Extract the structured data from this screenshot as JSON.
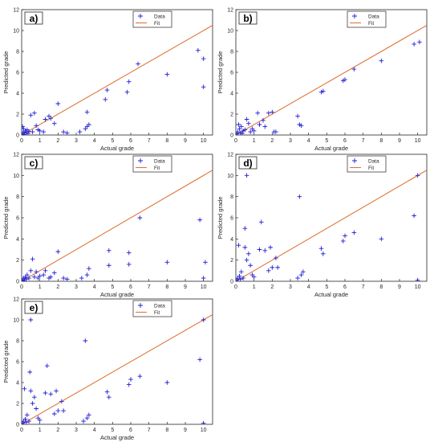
{
  "chart_data": [
    {
      "type": "scatter",
      "panel_label": "a)",
      "xlabel": "Actual grade",
      "ylabel": "Predicted grade",
      "xlim": [
        0,
        10.5
      ],
      "ylim": [
        0,
        12
      ],
      "xticks": [
        0,
        1,
        2,
        3,
        4,
        5,
        6,
        7,
        8,
        9,
        10
      ],
      "yticks": [
        0,
        2,
        4,
        6,
        8,
        10,
        12
      ],
      "legend_position": "top-center",
      "grid": false,
      "series": [
        {
          "name": "Data",
          "marker": "plus",
          "color": "#1f1fd6",
          "points": [
            [
              0.05,
              0.1
            ],
            [
              0.1,
              0.3
            ],
            [
              0.15,
              0.05
            ],
            [
              0.2,
              0.4
            ],
            [
              0.25,
              0.2
            ],
            [
              0.3,
              0.5
            ],
            [
              0.35,
              0.15
            ],
            [
              0.4,
              0.35
            ],
            [
              0.1,
              0.6
            ],
            [
              0.05,
              0.8
            ],
            [
              0.5,
              1.9
            ],
            [
              0.7,
              2.1
            ],
            [
              0.6,
              0.3
            ],
            [
              0.8,
              0.9
            ],
            [
              0.9,
              0.5
            ],
            [
              1.0,
              0.4
            ],
            [
              1.2,
              0.3
            ],
            [
              1.3,
              1.5
            ],
            [
              1.5,
              1.8
            ],
            [
              1.6,
              1.6
            ],
            [
              1.8,
              1.1
            ],
            [
              2.0,
              3.0
            ],
            [
              2.3,
              0.3
            ],
            [
              2.5,
              0.2
            ],
            [
              3.2,
              0.3
            ],
            [
              3.5,
              0.6
            ],
            [
              3.6,
              0.8
            ],
            [
              3.7,
              1.0
            ],
            [
              3.6,
              2.2
            ],
            [
              4.6,
              3.4
            ],
            [
              4.7,
              4.3
            ],
            [
              5.8,
              4.1
            ],
            [
              5.9,
              5.1
            ],
            [
              6.4,
              6.8
            ],
            [
              8.0,
              5.8
            ],
            [
              9.7,
              8.1
            ],
            [
              10.0,
              7.3
            ],
            [
              10.0,
              4.6
            ]
          ]
        },
        {
          "name": "Fit",
          "type": "line",
          "color": "#e0763a",
          "x": [
            0,
            10.5
          ],
          "y": [
            0,
            10.5
          ]
        }
      ]
    },
    {
      "type": "scatter",
      "panel_label": "b)",
      "xlabel": "Actual grade",
      "ylabel": "Predicted grade",
      "xlim": [
        0,
        10.5
      ],
      "ylim": [
        0,
        12
      ],
      "xticks": [
        0,
        1,
        2,
        3,
        4,
        5,
        6,
        7,
        8,
        9,
        10
      ],
      "yticks": [
        0,
        2,
        4,
        6,
        8,
        10,
        12
      ],
      "legend_position": "top-center",
      "grid": false,
      "series": [
        {
          "name": "Data",
          "marker": "plus",
          "color": "#1f1fd6",
          "points": [
            [
              0.05,
              0.1
            ],
            [
              0.1,
              0.3
            ],
            [
              0.15,
              1.0
            ],
            [
              0.2,
              0.6
            ],
            [
              0.25,
              0.2
            ],
            [
              0.3,
              0.8
            ],
            [
              0.35,
              0.15
            ],
            [
              0.4,
              0.4
            ],
            [
              0.5,
              0.5
            ],
            [
              0.6,
              1.5
            ],
            [
              0.7,
              1.1
            ],
            [
              0.8,
              0.3
            ],
            [
              0.9,
              0.6
            ],
            [
              1.0,
              0.4
            ],
            [
              1.2,
              2.1
            ],
            [
              1.3,
              1.0
            ],
            [
              1.5,
              1.4
            ],
            [
              1.6,
              0.8
            ],
            [
              1.8,
              2.1
            ],
            [
              2.0,
              2.2
            ],
            [
              2.1,
              0.3
            ],
            [
              2.2,
              0.3
            ],
            [
              3.4,
              1.8
            ],
            [
              3.5,
              1.0
            ],
            [
              3.6,
              0.9
            ],
            [
              4.7,
              4.1
            ],
            [
              4.8,
              4.2
            ],
            [
              5.9,
              5.2
            ],
            [
              6.0,
              5.3
            ],
            [
              6.5,
              6.3
            ],
            [
              8.0,
              7.1
            ],
            [
              9.8,
              8.7
            ],
            [
              10.1,
              8.9
            ]
          ]
        },
        {
          "name": "Fit",
          "type": "line",
          "color": "#e0763a",
          "x": [
            0,
            10.5
          ],
          "y": [
            0,
            10.5
          ]
        }
      ]
    },
    {
      "type": "scatter",
      "panel_label": "c)",
      "xlabel": "Actual grade",
      "ylabel": "Predicted grade",
      "xlim": [
        0,
        10.5
      ],
      "ylim": [
        0,
        12
      ],
      "xticks": [
        0,
        1,
        2,
        3,
        4,
        5,
        6,
        7,
        8,
        9,
        10
      ],
      "yticks": [
        0,
        2,
        4,
        6,
        8,
        10,
        12
      ],
      "legend_position": "top-center",
      "grid": false,
      "series": [
        {
          "name": "Data",
          "marker": "plus",
          "color": "#1f1fd6",
          "points": [
            [
              0.05,
              0.1
            ],
            [
              0.1,
              0.3
            ],
            [
              0.15,
              0.05
            ],
            [
              0.2,
              0.4
            ],
            [
              0.25,
              0.2
            ],
            [
              0.3,
              0.6
            ],
            [
              0.4,
              0.3
            ],
            [
              0.5,
              1.0
            ],
            [
              0.6,
              2.1
            ],
            [
              0.7,
              0.4
            ],
            [
              0.8,
              0.9
            ],
            [
              0.9,
              0.3
            ],
            [
              1.0,
              0.5
            ],
            [
              1.2,
              0.6
            ],
            [
              1.3,
              1.0
            ],
            [
              1.5,
              0.3
            ],
            [
              1.6,
              0.4
            ],
            [
              1.8,
              0.8
            ],
            [
              2.0,
              2.8
            ],
            [
              2.3,
              0.3
            ],
            [
              2.5,
              0.2
            ],
            [
              3.3,
              0.3
            ],
            [
              3.6,
              0.6
            ],
            [
              3.7,
              1.2
            ],
            [
              4.8,
              1.5
            ],
            [
              4.8,
              2.9
            ],
            [
              5.9,
              1.6
            ],
            [
              5.9,
              2.7
            ],
            [
              6.5,
              6.0
            ],
            [
              8.0,
              1.8
            ],
            [
              9.8,
              5.8
            ],
            [
              10.1,
              1.8
            ],
            [
              10.0,
              0.3
            ]
          ]
        },
        {
          "name": "Fit",
          "type": "line",
          "color": "#e0763a",
          "x": [
            0,
            10.5
          ],
          "y": [
            0,
            10.5
          ]
        }
      ]
    },
    {
      "type": "scatter",
      "panel_label": "d)",
      "xlabel": "Actual grade",
      "ylabel": "Predicted grade",
      "xlim": [
        0,
        10.5
      ],
      "ylim": [
        0,
        12
      ],
      "xticks": [
        0,
        1,
        2,
        3,
        4,
        5,
        6,
        7,
        8,
        9,
        10
      ],
      "yticks": [
        0,
        2,
        4,
        6,
        8,
        10,
        12
      ],
      "legend_position": "top-center",
      "grid": false,
      "series": [
        {
          "name": "Data",
          "marker": "plus",
          "color": "#1f1fd6",
          "points": [
            [
              0.05,
              0.1
            ],
            [
              0.1,
              0.3
            ],
            [
              0.15,
              3.4
            ],
            [
              0.2,
              0.5
            ],
            [
              0.25,
              0.2
            ],
            [
              0.3,
              0.9
            ],
            [
              0.4,
              0.3
            ],
            [
              0.5,
              5.0
            ],
            [
              0.6,
              10.0
            ],
            [
              0.5,
              3.2
            ],
            [
              0.6,
              2.0
            ],
            [
              0.7,
              2.6
            ],
            [
              0.8,
              1.5
            ],
            [
              0.9,
              0.6
            ],
            [
              1.0,
              0.4
            ],
            [
              1.3,
              3.0
            ],
            [
              1.4,
              5.6
            ],
            [
              1.6,
              2.9
            ],
            [
              1.8,
              1.0
            ],
            [
              1.9,
              3.2
            ],
            [
              2.0,
              1.3
            ],
            [
              2.2,
              2.2
            ],
            [
              2.3,
              1.3
            ],
            [
              3.4,
              0.3
            ],
            [
              3.5,
              8.0
            ],
            [
              3.6,
              0.6
            ],
            [
              3.7,
              0.9
            ],
            [
              4.7,
              3.1
            ],
            [
              4.8,
              2.6
            ],
            [
              5.9,
              3.8
            ],
            [
              6.0,
              4.3
            ],
            [
              6.5,
              4.6
            ],
            [
              8.0,
              4.0
            ],
            [
              9.8,
              6.2
            ],
            [
              10.0,
              10.0
            ],
            [
              10.0,
              0.1
            ]
          ]
        },
        {
          "name": "Fit",
          "type": "line",
          "color": "#e0763a",
          "x": [
            0,
            10.5
          ],
          "y": [
            0,
            10.5
          ]
        }
      ]
    },
    {
      "type": "scatter",
      "panel_label": "e)",
      "xlabel": "Actual grade",
      "ylabel": "Predicted grade",
      "xlim": [
        0,
        10.5
      ],
      "ylim": [
        0,
        12
      ],
      "xticks": [
        0,
        1,
        2,
        3,
        4,
        5,
        6,
        7,
        8,
        9,
        10
      ],
      "yticks": [
        0,
        2,
        4,
        6,
        8,
        10,
        12
      ],
      "legend_position": "top-center",
      "grid": false,
      "series": [
        {
          "name": "Data",
          "marker": "plus",
          "color": "#1f1fd6",
          "points": [
            [
              0.05,
              0.1
            ],
            [
              0.1,
              0.3
            ],
            [
              0.15,
              3.4
            ],
            [
              0.2,
              0.5
            ],
            [
              0.25,
              0.2
            ],
            [
              0.3,
              0.9
            ],
            [
              0.4,
              0.3
            ],
            [
              0.45,
              5.0
            ],
            [
              0.5,
              10.0
            ],
            [
              0.5,
              3.2
            ],
            [
              0.6,
              2.0
            ],
            [
              0.7,
              2.6
            ],
            [
              0.8,
              1.5
            ],
            [
              0.9,
              0.6
            ],
            [
              1.0,
              0.4
            ],
            [
              1.3,
              3.0
            ],
            [
              1.4,
              5.6
            ],
            [
              1.6,
              2.9
            ],
            [
              1.8,
              1.0
            ],
            [
              1.9,
              3.2
            ],
            [
              2.0,
              1.3
            ],
            [
              2.2,
              2.2
            ],
            [
              2.3,
              1.3
            ],
            [
              3.4,
              0.3
            ],
            [
              3.5,
              8.0
            ],
            [
              3.6,
              0.6
            ],
            [
              3.7,
              0.9
            ],
            [
              4.7,
              3.1
            ],
            [
              4.8,
              2.6
            ],
            [
              5.9,
              3.8
            ],
            [
              6.0,
              4.3
            ],
            [
              6.5,
              4.6
            ],
            [
              8.0,
              4.0
            ],
            [
              9.8,
              6.2
            ],
            [
              10.0,
              10.0
            ],
            [
              10.0,
              0.1
            ]
          ]
        },
        {
          "name": "Fit",
          "type": "line",
          "color": "#e0763a",
          "x": [
            0,
            10.5
          ],
          "y": [
            0,
            10.5
          ]
        }
      ]
    }
  ]
}
